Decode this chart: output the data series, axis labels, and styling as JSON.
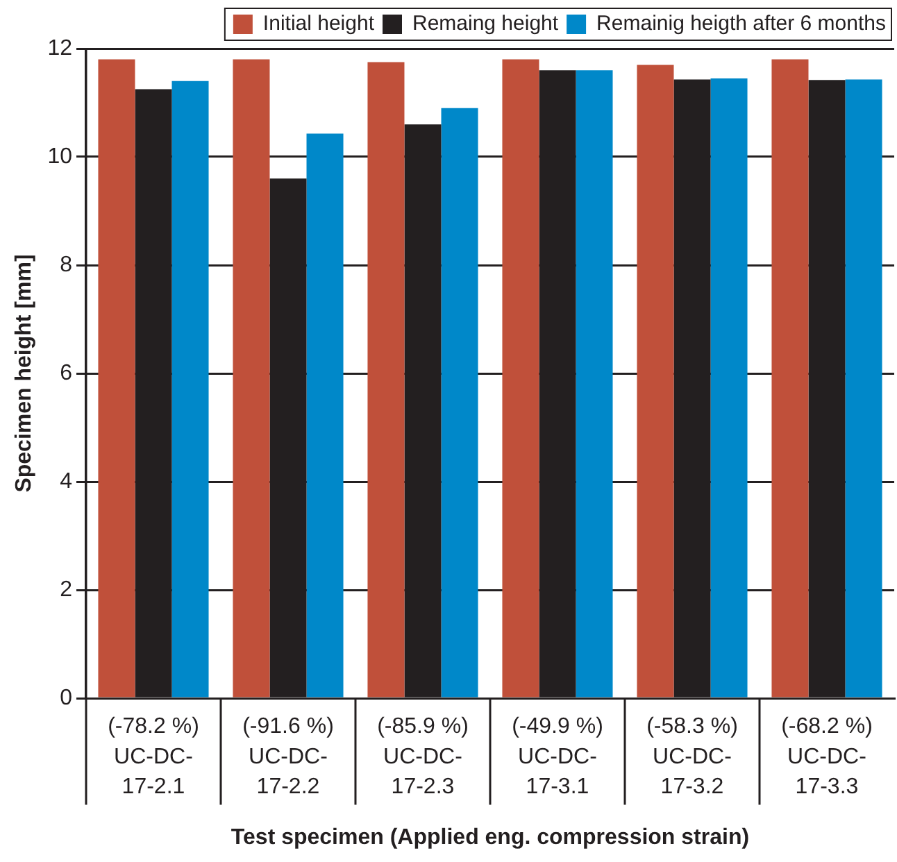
{
  "chart_data": {
    "type": "bar",
    "xlabel": "Test specimen (Applied eng. compression strain)",
    "ylabel": "Specimen height [mm]",
    "categories": [
      "(-78.2 %)\nUC-DC-17-2.1",
      "(-91.6 %)\nUC-DC-17-2.2",
      "(-85.9 %)\nUC-DC-17-2.3",
      "(-49.9 %)\nUC-DC-17-3.1",
      "(-58.3 %)\nUC-DC-17-3.2",
      "(-68.2 %)\nUC-DC-17-3.3"
    ],
    "series": [
      {
        "name": "Initial height",
        "color": "#c0503a",
        "values": [
          11.8,
          11.8,
          11.75,
          11.8,
          11.7,
          11.8
        ]
      },
      {
        "name": "Remaing height",
        "color": "#231f20",
        "values": [
          11.25,
          9.6,
          10.6,
          11.6,
          11.43,
          11.42
        ]
      },
      {
        "name": "Remainig heigth after 6 months",
        "color": "#0088c9",
        "values": [
          11.4,
          10.43,
          10.9,
          11.6,
          11.45,
          11.43
        ]
      }
    ],
    "ylim": [
      0,
      12
    ],
    "yticks": [
      0,
      2,
      4,
      6,
      8,
      10,
      12
    ],
    "grid": "y",
    "legend": "top"
  }
}
